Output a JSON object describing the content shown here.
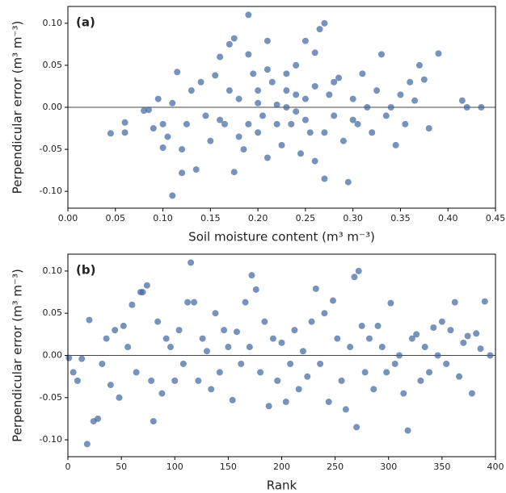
{
  "chart_data": [
    {
      "type": "scatter",
      "annotation": "(a)",
      "xlabel": "Soil moisture content (m³ m⁻³)",
      "ylabel": "Perpendicular error (m³ m⁻³)",
      "color": "#3d65a0",
      "hline": 0,
      "xlim": [
        0,
        0.45
      ],
      "ylim": [
        -0.12,
        0.12
      ],
      "xticks": [
        {
          "value": 0,
          "label": "0.00"
        },
        {
          "value": 0.05,
          "label": "0.05"
        },
        {
          "value": 0.1,
          "label": "0.10"
        },
        {
          "value": 0.15,
          "label": "0.15"
        },
        {
          "value": 0.2,
          "label": "0.20"
        },
        {
          "value": 0.25,
          "label": "0.25"
        },
        {
          "value": 0.3,
          "label": "0.30"
        },
        {
          "value": 0.35,
          "label": "0.35"
        },
        {
          "value": 0.4,
          "label": "0.40"
        },
        {
          "value": 0.45,
          "label": "0.45"
        }
      ],
      "yticks": [
        {
          "value": -0.1,
          "label": "-0.10"
        },
        {
          "value": -0.05,
          "label": "-0.05"
        },
        {
          "value": 0,
          "label": "0.00"
        },
        {
          "value": 0.05,
          "label": "0.05"
        },
        {
          "value": 0.1,
          "label": "0.10"
        }
      ],
      "x": [
        0.045,
        0.06,
        0.06,
        0.08,
        0.085,
        0.09,
        0.095,
        0.1,
        0.1,
        0.105,
        0.11,
        0.11,
        0.115,
        0.12,
        0.12,
        0.125,
        0.13,
        0.135,
        0.14,
        0.145,
        0.15,
        0.155,
        0.16,
        0.165,
        0.17,
        0.175,
        0.175,
        0.18,
        0.185,
        0.19,
        0.19,
        0.195,
        0.2,
        0.2,
        0.205,
        0.21,
        0.21,
        0.215,
        0.22,
        0.225,
        0.23,
        0.235,
        0.24,
        0.245,
        0.25,
        0.25,
        0.255,
        0.26,
        0.26,
        0.265,
        0.27,
        0.27,
        0.275,
        0.28,
        0.285,
        0.29,
        0.295,
        0.3,
        0.305,
        0.31,
        0.315,
        0.32,
        0.325,
        0.33,
        0.335,
        0.34,
        0.345,
        0.35,
        0.355,
        0.36,
        0.365,
        0.37,
        0.375,
        0.38,
        0.39,
        0.415,
        0.42,
        0.435,
        0.22,
        0.23,
        0.24,
        0.18,
        0.21,
        0.26,
        0.17,
        0.16,
        0.28,
        0.3,
        0.25,
        0.27,
        0.2,
        0.19,
        0.23,
        0.24
      ],
      "values": [
        -0.031,
        -0.018,
        -0.03,
        -0.004,
        -0.003,
        -0.025,
        0.01,
        -0.048,
        -0.02,
        -0.035,
        -0.105,
        0.005,
        0.042,
        -0.078,
        -0.05,
        -0.02,
        0.02,
        -0.074,
        0.03,
        -0.01,
        -0.04,
        0.038,
        0.06,
        -0.02,
        0.075,
        0.082,
        -0.077,
        0.01,
        -0.05,
        0.11,
        0.063,
        0.04,
        -0.03,
        0.02,
        -0.01,
        0.079,
        -0.06,
        0.03,
        0.003,
        -0.045,
        0.02,
        -0.02,
        0.05,
        -0.055,
        0.079,
        0.01,
        -0.03,
        0.065,
        -0.064,
        0.093,
        0.1,
        -0.085,
        0.015,
        -0.01,
        0.035,
        -0.04,
        -0.089,
        0.01,
        -0.02,
        0.04,
        0.0,
        -0.03,
        0.02,
        0.063,
        -0.01,
        0.0,
        -0.045,
        0.015,
        -0.02,
        0.03,
        0.008,
        0.05,
        0.033,
        -0.025,
        0.064,
        0.008,
        0.0,
        0.0,
        -0.02,
        0.0,
        -0.005,
        -0.035,
        0.045,
        0.025,
        0.02,
        -0.015,
        0.03,
        -0.015,
        -0.015,
        -0.03,
        0.005,
        -0.02,
        0.04,
        0.015
      ]
    },
    {
      "type": "scatter",
      "annotation": "(b)",
      "xlabel": "Rank",
      "ylabel": "Perpendicular error (m³ m⁻³)",
      "color": "#3d65a0",
      "hline": 0,
      "xlim": [
        0,
        400
      ],
      "ylim": [
        -0.12,
        0.12
      ],
      "xticks": [
        0,
        50,
        100,
        150,
        200,
        250,
        300,
        350,
        400
      ],
      "yticks": [
        {
          "value": -0.1,
          "label": "-0.10"
        },
        {
          "value": -0.05,
          "label": "-0.05"
        },
        {
          "value": 0,
          "label": "0.00"
        },
        {
          "value": 0.05,
          "label": "0.05"
        },
        {
          "value": 0.1,
          "label": "0.10"
        }
      ],
      "x": [
        1,
        5,
        9,
        13,
        18,
        20,
        24,
        28,
        32,
        36,
        40,
        44,
        48,
        52,
        56,
        60,
        64,
        68,
        70,
        74,
        78,
        80,
        84,
        88,
        92,
        96,
        100,
        104,
        108,
        112,
        115,
        118,
        122,
        126,
        130,
        134,
        138,
        142,
        146,
        150,
        154,
        158,
        162,
        166,
        170,
        172,
        176,
        180,
        184,
        188,
        192,
        196,
        200,
        204,
        208,
        212,
        216,
        220,
        224,
        228,
        232,
        236,
        240,
        244,
        248,
        252,
        256,
        260,
        264,
        268,
        270,
        272,
        275,
        278,
        282,
        286,
        290,
        294,
        298,
        302,
        306,
        310,
        314,
        318,
        322,
        326,
        330,
        334,
        338,
        342,
        346,
        350,
        354,
        358,
        362,
        366,
        370,
        374,
        378,
        382,
        386,
        390,
        395
      ],
      "values": [
        -0.003,
        -0.02,
        -0.03,
        -0.004,
        -0.105,
        0.042,
        -0.078,
        -0.075,
        -0.01,
        0.02,
        -0.035,
        0.03,
        -0.05,
        0.035,
        0.01,
        0.06,
        -0.02,
        0.075,
        0.075,
        0.083,
        -0.03,
        -0.078,
        0.04,
        -0.045,
        0.02,
        0.01,
        -0.03,
        0.03,
        -0.01,
        0.063,
        0.11,
        0.063,
        -0.03,
        0.02,
        0.005,
        -0.04,
        0.05,
        -0.02,
        0.03,
        0.01,
        -0.053,
        0.028,
        -0.01,
        0.063,
        0.01,
        0.095,
        0.078,
        -0.02,
        0.04,
        -0.06,
        0.02,
        -0.03,
        0.015,
        -0.055,
        -0.01,
        0.03,
        -0.04,
        0.005,
        -0.025,
        0.04,
        0.079,
        -0.01,
        0.05,
        -0.055,
        0.065,
        0.02,
        -0.03,
        -0.064,
        0.01,
        0.093,
        -0.085,
        0.1,
        0.035,
        -0.02,
        0.02,
        -0.04,
        0.035,
        0.01,
        -0.02,
        0.062,
        -0.01,
        0.0,
        -0.045,
        -0.089,
        0.02,
        0.025,
        -0.03,
        0.01,
        -0.02,
        0.033,
        0.0,
        0.04,
        -0.01,
        0.03,
        0.063,
        -0.025,
        0.015,
        0.023,
        -0.045,
        0.026,
        0.008,
        0.064,
        0.0
      ]
    }
  ]
}
